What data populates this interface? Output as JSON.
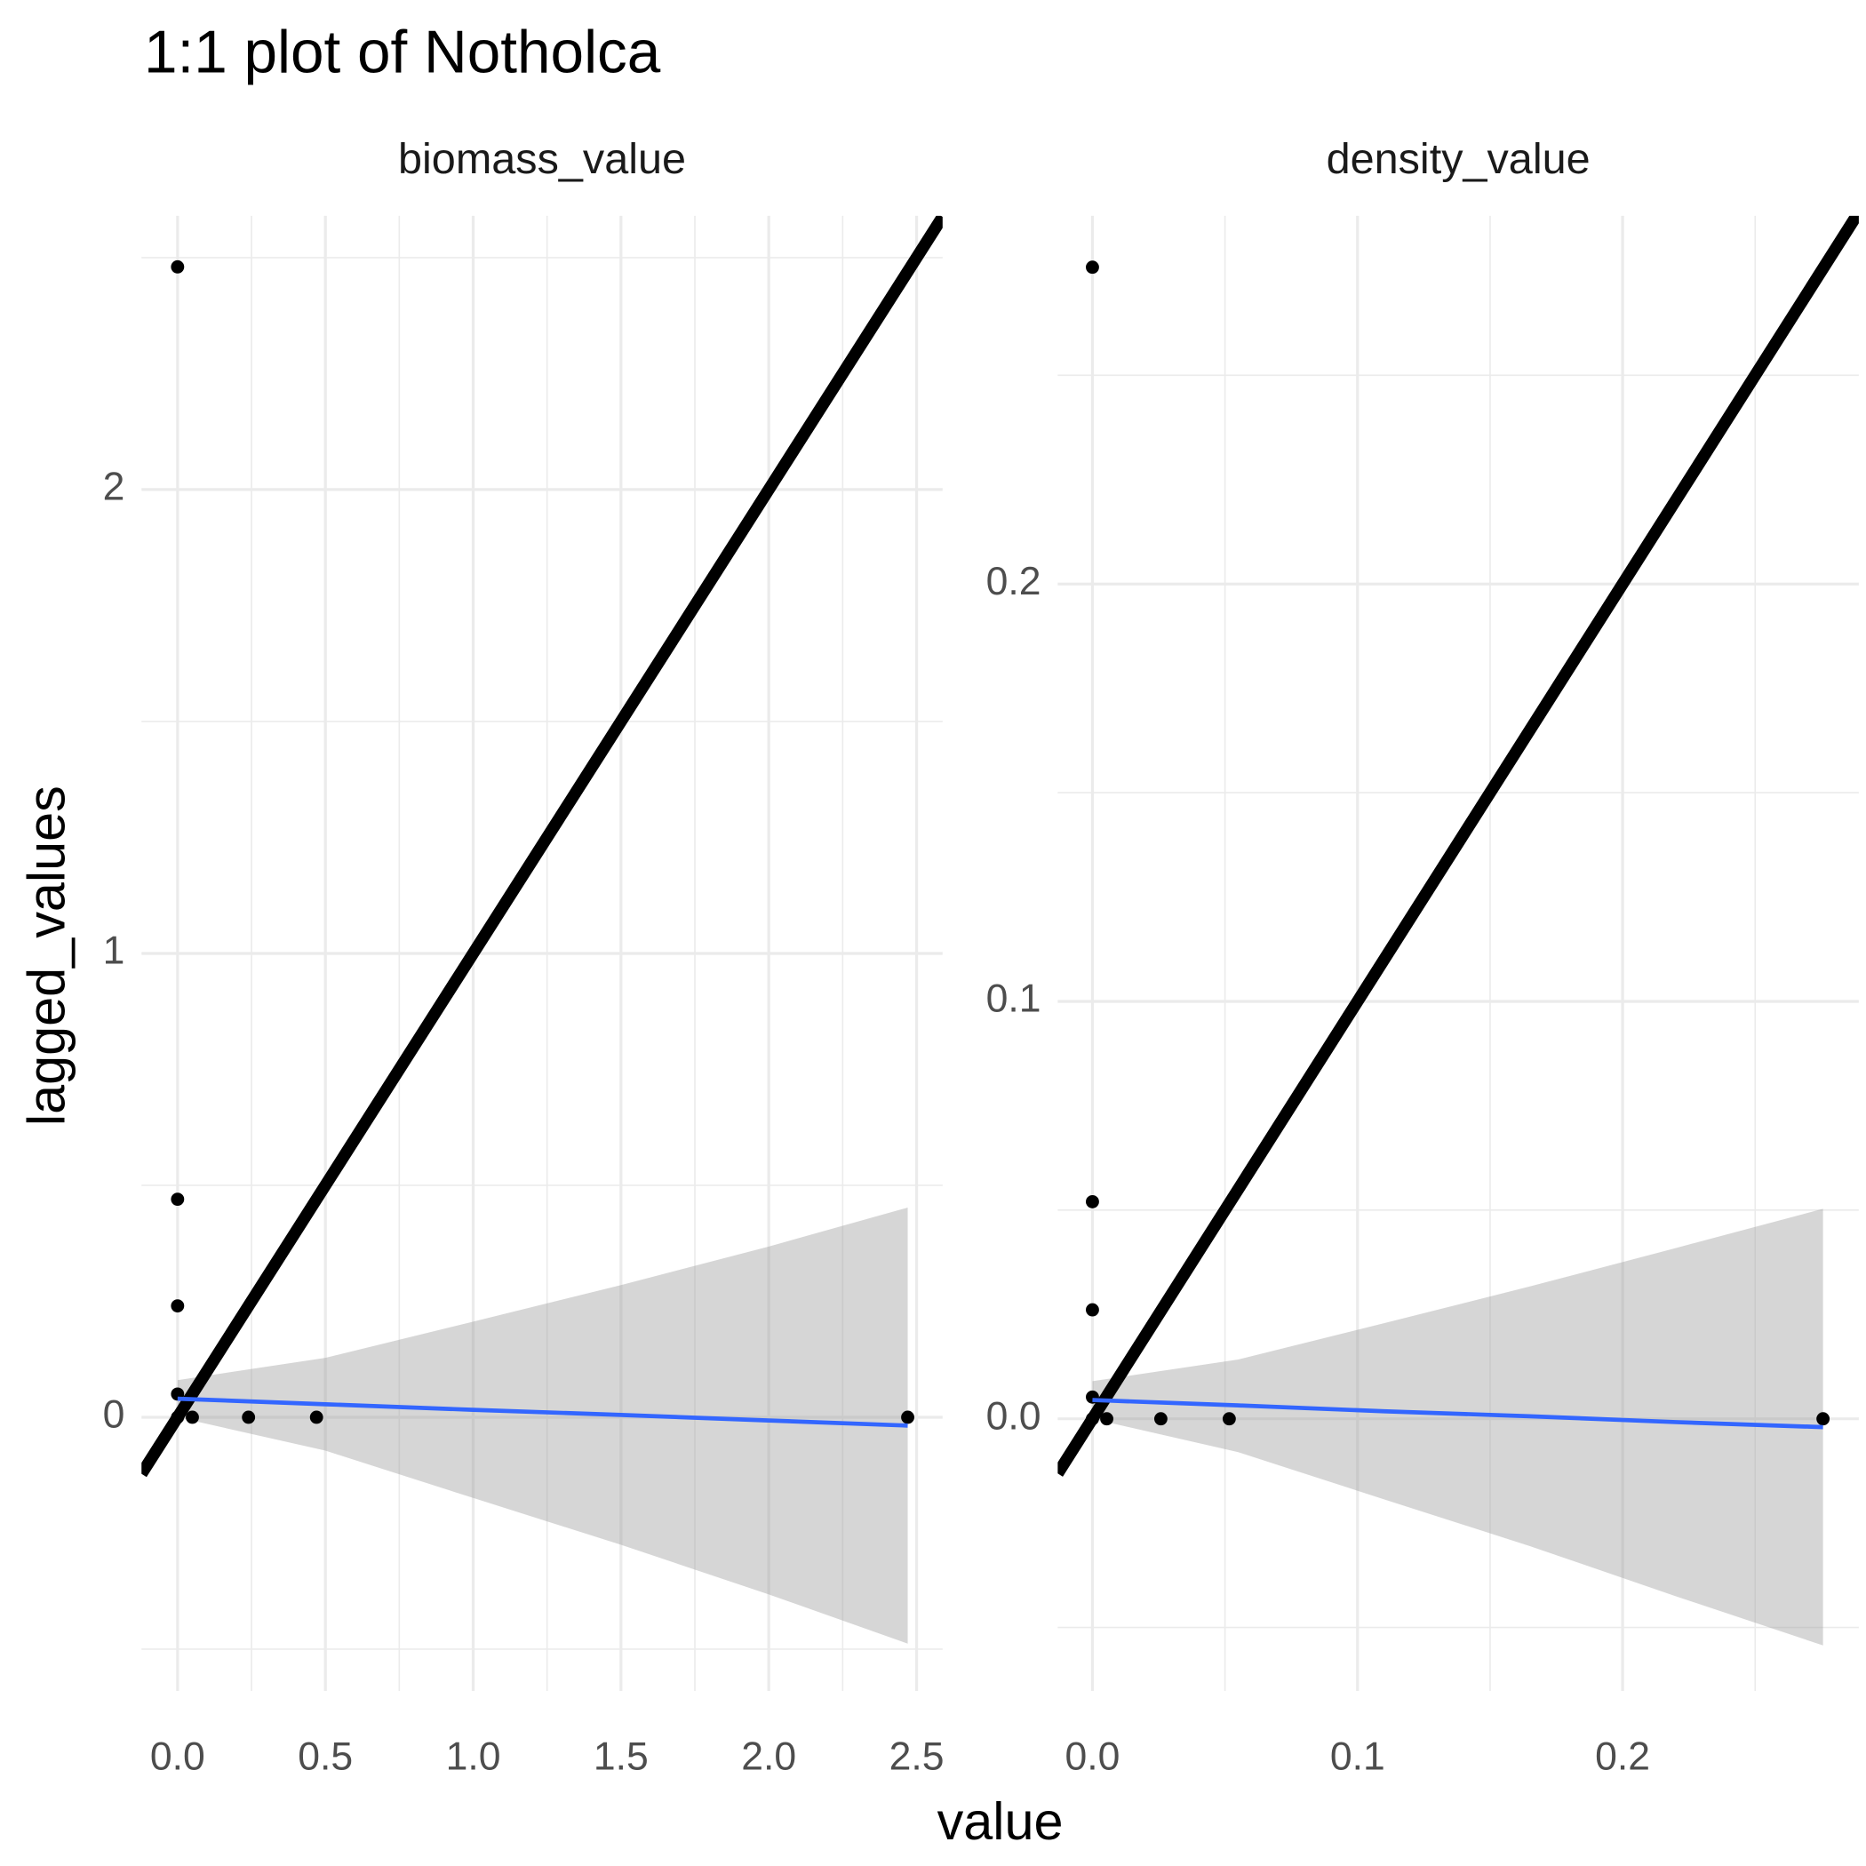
{
  "chart_data": {
    "type": "scatter",
    "title": "1:1 plot of Notholca",
    "x_label": "value",
    "y_label": "lagged_values",
    "panels": [
      {
        "title": "biomass_value",
        "x": [
          0,
          0,
          0,
          0,
          0,
          0.05,
          0.24,
          0.47,
          2.47
        ],
        "y": [
          2.48,
          0.47,
          0.24,
          0.05,
          0,
          0,
          0,
          0,
          0
        ],
        "point_color": "#000000",
        "abline": {
          "slope": 1,
          "intercept": 0,
          "color": "#000000"
        },
        "smooth": {
          "color": "#3366ff",
          "fill": "#999999",
          "x": [
            0,
            0.5,
            1,
            1.5,
            2,
            2.47
          ],
          "fit": [
            0.04,
            0.028,
            0.016,
            0.005,
            -0.007,
            -0.018
          ],
          "upper": [
            0.08,
            0.128,
            0.206,
            0.285,
            0.368,
            0.452
          ],
          "lower": [
            0,
            -0.072,
            -0.174,
            -0.275,
            -0.382,
            -0.488
          ]
        },
        "xlim": [
          -0.122,
          2.588
        ],
        "ylim": [
          -0.59,
          2.59
        ],
        "xticks": [
          {
            "value": 0,
            "label": "0.0"
          },
          0.5,
          {
            "value": 1,
            "label": "1.0"
          },
          1.5,
          {
            "value": 2,
            "label": "2.0"
          },
          2.5
        ],
        "yticks": [
          0,
          1,
          2
        ],
        "minor_xticks": [
          0.25,
          0.75,
          1.25,
          1.75,
          2.25
        ],
        "minor_yticks": [
          -0.5,
          0.5,
          1.5,
          2.5
        ]
      },
      {
        "title": "density_value",
        "x": [
          0,
          0,
          0,
          0,
          0,
          0.0054,
          0.0258,
          0.0516,
          0.2756
        ],
        "y": [
          0.2759,
          0.052,
          0.0261,
          0.0052,
          0,
          0,
          0,
          0,
          0
        ],
        "point_color": "#000000",
        "abline": {
          "slope": 1,
          "intercept": 0,
          "color": "#000000"
        },
        "smooth": {
          "color": "#3366ff",
          "fill": "#999999",
          "x": [
            0,
            0.055,
            0.11,
            0.165,
            0.22,
            0.2756
          ],
          "fit": [
            0.0045,
            0.0032,
            0.0018,
            0.0006,
            -0.0008,
            -0.002
          ],
          "upper": [
            0.009,
            0.0142,
            0.0229,
            0.0317,
            0.0409,
            0.0503
          ],
          "lower": [
            0,
            -0.008,
            -0.0193,
            -0.0305,
            -0.0425,
            -0.0543
          ]
        },
        "xlim": [
          -0.0131,
          0.2891
        ],
        "ylim": [
          -0.0652,
          0.2882
        ],
        "xticks": [
          {
            "value": 0,
            "label": "0.0"
          },
          0.1,
          0.2
        ],
        "yticks": [
          {
            "value": 0,
            "label": "0.0"
          },
          0.1,
          0.2
        ],
        "minor_xticks": [
          0.05,
          0.15,
          0.25
        ],
        "minor_yticks": [
          -0.05,
          0.05,
          0.15,
          0.25
        ]
      }
    ]
  }
}
